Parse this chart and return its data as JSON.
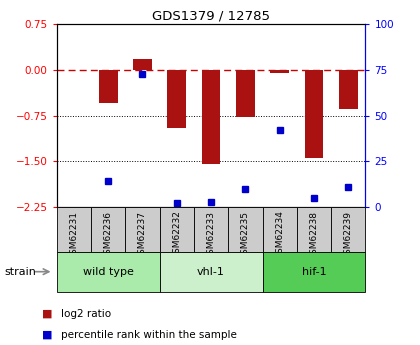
{
  "title": "GDS1379 / 12785",
  "samples": [
    "GSM62231",
    "GSM62236",
    "GSM62237",
    "GSM62232",
    "GSM62233",
    "GSM62235",
    "GSM62234",
    "GSM62238",
    "GSM62239"
  ],
  "log2_ratio": [
    0.0,
    -0.55,
    0.18,
    -0.95,
    -1.55,
    -0.78,
    -0.05,
    -1.45,
    -0.65
  ],
  "percentile_rank": [
    null,
    14,
    73,
    2,
    3,
    10,
    42,
    5,
    11
  ],
  "groups": [
    {
      "label": "wild type",
      "indices": [
        0,
        1,
        2
      ],
      "color": "#aaeaaa"
    },
    {
      "label": "vhl-1",
      "indices": [
        3,
        4,
        5
      ],
      "color": "#ccf0cc"
    },
    {
      "label": "hif-1",
      "indices": [
        6,
        7,
        8
      ],
      "color": "#55cc55"
    }
  ],
  "ylim_left": [
    -2.25,
    0.75
  ],
  "ylim_right": [
    0,
    100
  ],
  "yticks_left": [
    0.75,
    0,
    -0.75,
    -1.5,
    -2.25
  ],
  "yticks_right": [
    100,
    75,
    50,
    25,
    0
  ],
  "bar_color": "#aa1111",
  "dot_color": "#0000cc",
  "hline_color": "#cc0000",
  "grid_color": "#000000",
  "legend_bar_label": "log2 ratio",
  "legend_dot_label": "percentile rank within the sample",
  "strain_label": "strain",
  "sample_box_color": "#cccccc",
  "bar_width": 0.55
}
